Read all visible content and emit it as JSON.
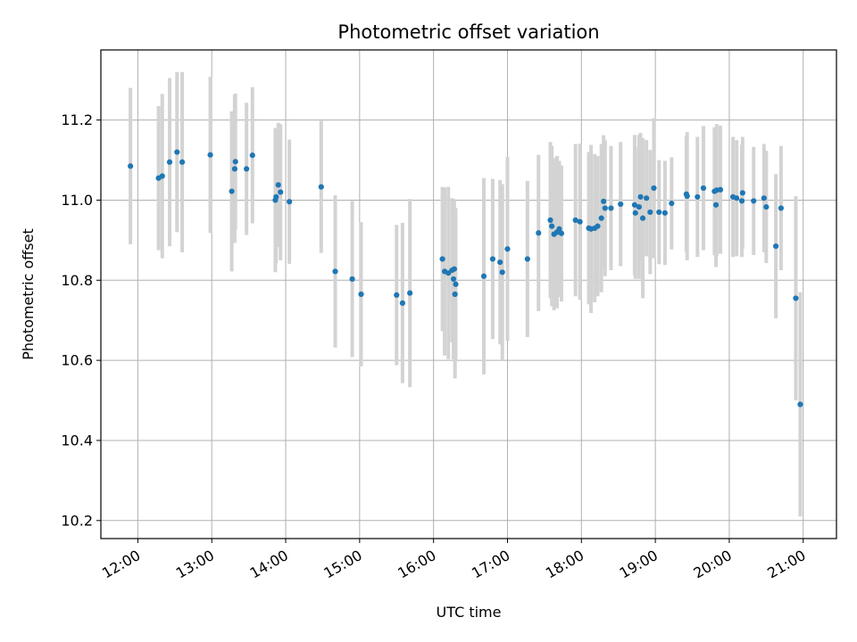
{
  "chart_data": {
    "type": "scatter",
    "title": "Photometric offset variation",
    "xlabel": "UTC time",
    "ylabel": "Photometric offset",
    "grid": true,
    "xlim_hours": [
      11.5,
      21.45
    ],
    "ylim": [
      10.155,
      11.375
    ],
    "x_ticks": [
      {
        "value": 12,
        "label": "12:00"
      },
      {
        "value": 13,
        "label": "13:00"
      },
      {
        "value": 14,
        "label": "14:00"
      },
      {
        "value": 15,
        "label": "15:00"
      },
      {
        "value": 16,
        "label": "16:00"
      },
      {
        "value": 17,
        "label": "17:00"
      },
      {
        "value": 18,
        "label": "18:00"
      },
      {
        "value": 19,
        "label": "19:00"
      },
      {
        "value": 20,
        "label": "20:00"
      },
      {
        "value": 21,
        "label": "21:00"
      }
    ],
    "y_ticks": [
      {
        "value": 10.2,
        "label": "10.2"
      },
      {
        "value": 10.4,
        "label": "10.4"
      },
      {
        "value": 10.6,
        "label": "10.6"
      },
      {
        "value": 10.8,
        "label": "10.8"
      },
      {
        "value": 11.0,
        "label": "11.0"
      },
      {
        "value": 11.2,
        "label": "11.2"
      }
    ],
    "colors": {
      "point": "#1f77b4",
      "errorbar": "#d3d3d3",
      "grid": "#b0b0b0"
    },
    "points": [
      {
        "x": 11.9,
        "y": 11.085,
        "err": 0.195
      },
      {
        "x": 12.28,
        "y": 11.055,
        "err": 0.18
      },
      {
        "x": 12.33,
        "y": 11.06,
        "err": 0.205
      },
      {
        "x": 12.43,
        "y": 11.095,
        "err": 0.21
      },
      {
        "x": 12.53,
        "y": 11.12,
        "err": 0.2
      },
      {
        "x": 12.6,
        "y": 11.095,
        "err": 0.225
      },
      {
        "x": 12.98,
        "y": 11.113,
        "err": 0.195
      },
      {
        "x": 13.27,
        "y": 11.022,
        "err": 0.2
      },
      {
        "x": 13.31,
        "y": 11.078,
        "err": 0.185
      },
      {
        "x": 13.32,
        "y": 11.096,
        "err": 0.17
      },
      {
        "x": 13.47,
        "y": 11.078,
        "err": 0.165
      },
      {
        "x": 13.55,
        "y": 11.112,
        "err": 0.17
      },
      {
        "x": 13.86,
        "y": 11.0,
        "err": 0.18
      },
      {
        "x": 13.87,
        "y": 11.008,
        "err": 0.165
      },
      {
        "x": 13.9,
        "y": 11.038,
        "err": 0.155
      },
      {
        "x": 13.93,
        "y": 11.02,
        "err": 0.17
      },
      {
        "x": 14.05,
        "y": 10.996,
        "err": 0.155
      },
      {
        "x": 14.48,
        "y": 11.033,
        "err": 0.165
      },
      {
        "x": 14.67,
        "y": 10.822,
        "err": 0.19
      },
      {
        "x": 14.9,
        "y": 10.803,
        "err": 0.195
      },
      {
        "x": 15.02,
        "y": 10.765,
        "err": 0.18
      },
      {
        "x": 15.5,
        "y": 10.763,
        "err": 0.175
      },
      {
        "x": 15.58,
        "y": 10.743,
        "err": 0.2
      },
      {
        "x": 15.68,
        "y": 10.768,
        "err": 0.235
      },
      {
        "x": 16.12,
        "y": 10.853,
        "err": 0.18
      },
      {
        "x": 16.15,
        "y": 10.822,
        "err": 0.21
      },
      {
        "x": 16.2,
        "y": 10.818,
        "err": 0.215
      },
      {
        "x": 16.25,
        "y": 10.825,
        "err": 0.18
      },
      {
        "x": 16.27,
        "y": 10.803,
        "err": 0.2
      },
      {
        "x": 16.28,
        "y": 10.828,
        "err": 0.17
      },
      {
        "x": 16.29,
        "y": 10.765,
        "err": 0.21
      },
      {
        "x": 16.3,
        "y": 10.79,
        "err": 0.19
      },
      {
        "x": 16.68,
        "y": 10.81,
        "err": 0.245
      },
      {
        "x": 16.8,
        "y": 10.853,
        "err": 0.2
      },
      {
        "x": 16.9,
        "y": 10.845,
        "err": 0.205
      },
      {
        "x": 16.93,
        "y": 10.82,
        "err": 0.22
      },
      {
        "x": 17.0,
        "y": 10.878,
        "err": 0.23
      },
      {
        "x": 17.27,
        "y": 10.853,
        "err": 0.195
      },
      {
        "x": 17.42,
        "y": 10.918,
        "err": 0.195
      },
      {
        "x": 17.58,
        "y": 10.95,
        "err": 0.195
      },
      {
        "x": 17.6,
        "y": 10.935,
        "err": 0.2
      },
      {
        "x": 17.63,
        "y": 10.915,
        "err": 0.19
      },
      {
        "x": 17.67,
        "y": 10.92,
        "err": 0.19
      },
      {
        "x": 17.7,
        "y": 10.928,
        "err": 0.17
      },
      {
        "x": 17.73,
        "y": 10.917,
        "err": 0.17
      },
      {
        "x": 17.92,
        "y": 10.95,
        "err": 0.19
      },
      {
        "x": 17.98,
        "y": 10.946,
        "err": 0.195
      },
      {
        "x": 18.1,
        "y": 10.93,
        "err": 0.19
      },
      {
        "x": 18.13,
        "y": 10.928,
        "err": 0.21
      },
      {
        "x": 18.18,
        "y": 10.93,
        "err": 0.185
      },
      {
        "x": 18.22,
        "y": 10.935,
        "err": 0.175
      },
      {
        "x": 18.27,
        "y": 10.955,
        "err": 0.185
      },
      {
        "x": 18.3,
        "y": 10.997,
        "err": 0.165
      },
      {
        "x": 18.32,
        "y": 10.98,
        "err": 0.17
      },
      {
        "x": 18.4,
        "y": 10.98,
        "err": 0.155
      },
      {
        "x": 18.53,
        "y": 10.99,
        "err": 0.155
      },
      {
        "x": 18.72,
        "y": 10.988,
        "err": 0.175
      },
      {
        "x": 18.73,
        "y": 10.968,
        "err": 0.165
      },
      {
        "x": 18.78,
        "y": 10.983,
        "err": 0.18
      },
      {
        "x": 18.8,
        "y": 11.008,
        "err": 0.16
      },
      {
        "x": 18.83,
        "y": 10.955,
        "err": 0.2
      },
      {
        "x": 18.88,
        "y": 11.005,
        "err": 0.145
      },
      {
        "x": 18.93,
        "y": 10.97,
        "err": 0.155
      },
      {
        "x": 18.98,
        "y": 11.03,
        "err": 0.175
      },
      {
        "x": 19.05,
        "y": 10.97,
        "err": 0.13
      },
      {
        "x": 19.13,
        "y": 10.968,
        "err": 0.13
      },
      {
        "x": 19.22,
        "y": 10.992,
        "err": 0.115
      },
      {
        "x": 19.42,
        "y": 11.015,
        "err": 0.145
      },
      {
        "x": 19.43,
        "y": 11.01,
        "err": 0.16
      },
      {
        "x": 19.57,
        "y": 11.008,
        "err": 0.15
      },
      {
        "x": 19.65,
        "y": 11.03,
        "err": 0.155
      },
      {
        "x": 19.8,
        "y": 11.022,
        "err": 0.16
      },
      {
        "x": 19.82,
        "y": 10.988,
        "err": 0.155
      },
      {
        "x": 19.83,
        "y": 11.025,
        "err": 0.165
      },
      {
        "x": 19.88,
        "y": 11.026,
        "err": 0.16
      },
      {
        "x": 20.05,
        "y": 11.008,
        "err": 0.15
      },
      {
        "x": 20.1,
        "y": 11.005,
        "err": 0.145
      },
      {
        "x": 20.17,
        "y": 10.998,
        "err": 0.14
      },
      {
        "x": 20.18,
        "y": 11.018,
        "err": 0.14
      },
      {
        "x": 20.33,
        "y": 10.998,
        "err": 0.135
      },
      {
        "x": 20.47,
        "y": 11.005,
        "err": 0.135
      },
      {
        "x": 20.5,
        "y": 10.983,
        "err": 0.14
      },
      {
        "x": 20.63,
        "y": 10.885,
        "err": 0.18
      },
      {
        "x": 20.7,
        "y": 10.98,
        "err": 0.155
      },
      {
        "x": 20.9,
        "y": 10.755,
        "err": 0.255
      },
      {
        "x": 20.96,
        "y": 10.49,
        "err": 0.28
      }
    ]
  }
}
